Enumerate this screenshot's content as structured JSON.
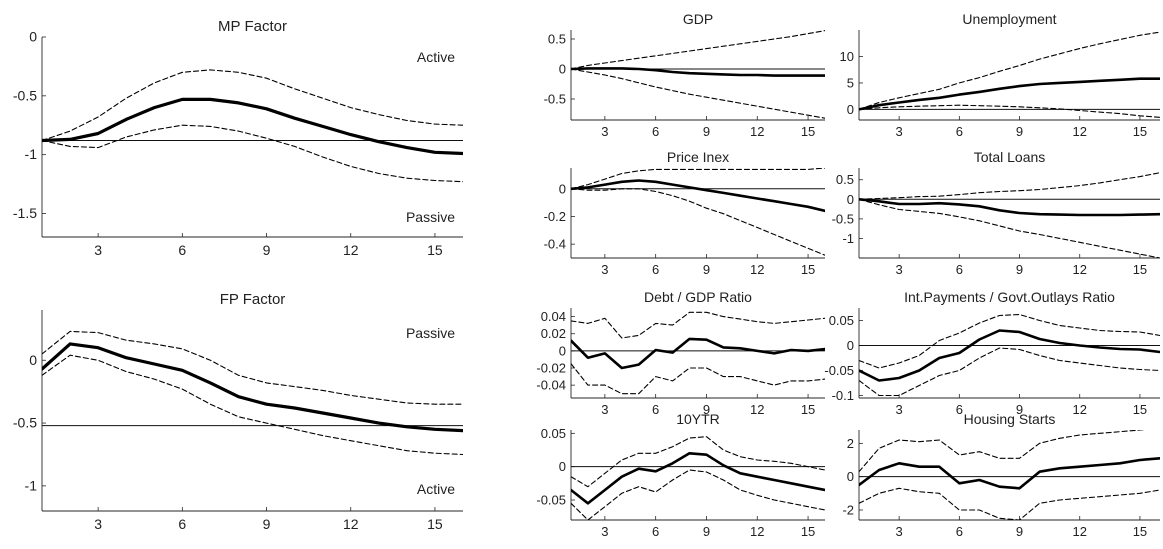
{
  "chart_data": [
    {
      "type": "line",
      "title": "MP Factor",
      "x": [
        1,
        2,
        3,
        4,
        5,
        6,
        7,
        8,
        9,
        10,
        11,
        12,
        13,
        14,
        15,
        16
      ],
      "xlim": [
        1,
        16
      ],
      "ylim": [
        -1.7,
        0
      ],
      "xticks": [
        3,
        6,
        9,
        12,
        15
      ],
      "yticks": [
        0,
        -0.5,
        -1,
        -1.5
      ],
      "xtick_labels": [
        "3",
        "6",
        "9",
        "12",
        "15"
      ],
      "ytick_labels": [
        "0",
        "-0.5",
        "-1",
        "-1.5"
      ],
      "hline": -0.88,
      "annotations": [
        "Active",
        "Passive"
      ],
      "series": [
        {
          "values": [
            -0.88,
            -0.87,
            -0.82,
            -0.7,
            -0.6,
            -0.53,
            -0.53,
            -0.56,
            -0.61,
            -0.69,
            -0.76,
            -0.83,
            -0.89,
            -0.94,
            -0.98,
            -0.99
          ]
        },
        {
          "values": [
            -0.88,
            -0.8,
            -0.68,
            -0.52,
            -0.39,
            -0.3,
            -0.28,
            -0.3,
            -0.35,
            -0.44,
            -0.52,
            -0.6,
            -0.66,
            -0.71,
            -0.74,
            -0.75
          ]
        },
        {
          "values": [
            -0.88,
            -0.93,
            -0.94,
            -0.85,
            -0.79,
            -0.75,
            -0.76,
            -0.8,
            -0.86,
            -0.93,
            -1.02,
            -1.1,
            -1.16,
            -1.2,
            -1.22,
            -1.23
          ]
        }
      ]
    },
    {
      "type": "line",
      "title": "FP Factor",
      "x": [
        1,
        2,
        3,
        4,
        5,
        6,
        7,
        8,
        9,
        10,
        11,
        12,
        13,
        14,
        15,
        16
      ],
      "xlim": [
        1,
        16
      ],
      "ylim": [
        -1.2,
        0.4
      ],
      "xticks": [
        3,
        6,
        9,
        12,
        15
      ],
      "yticks": [
        0,
        -0.5,
        -1
      ],
      "xtick_labels": [
        "3",
        "6",
        "9",
        "12",
        "15"
      ],
      "ytick_labels": [
        "0",
        "-0.5",
        "-1"
      ],
      "hline": -0.52,
      "annotations": [
        "Passive",
        "Active"
      ],
      "series": [
        {
          "values": [
            -0.07,
            0.13,
            0.1,
            0.02,
            -0.03,
            -0.08,
            -0.18,
            -0.29,
            -0.35,
            -0.38,
            -0.42,
            -0.46,
            -0.5,
            -0.53,
            -0.55,
            -0.56
          ]
        },
        {
          "values": [
            0.05,
            0.23,
            0.22,
            0.16,
            0.13,
            0.09,
            0.0,
            -0.12,
            -0.18,
            -0.21,
            -0.24,
            -0.28,
            -0.31,
            -0.34,
            -0.35,
            -0.35
          ]
        },
        {
          "values": [
            -0.12,
            0.04,
            0.0,
            -0.09,
            -0.15,
            -0.23,
            -0.35,
            -0.45,
            -0.5,
            -0.55,
            -0.6,
            -0.64,
            -0.68,
            -0.72,
            -0.74,
            -0.75
          ]
        }
      ]
    },
    {
      "type": "line",
      "title": "GDP",
      "x": [
        1,
        2,
        3,
        4,
        5,
        6,
        7,
        8,
        9,
        10,
        11,
        12,
        13,
        14,
        15,
        16
      ],
      "xlim": [
        1,
        16
      ],
      "ylim": [
        -0.85,
        0.65
      ],
      "xticks": [
        3,
        6,
        9,
        12,
        15
      ],
      "yticks": [
        0.5,
        0,
        -0.5
      ],
      "xtick_labels": [
        "3",
        "6",
        "9",
        "12",
        "15"
      ],
      "ytick_labels": [
        "0.5",
        "0",
        "-0.5"
      ],
      "hline": 0,
      "series": [
        {
          "values": [
            0,
            0.01,
            0.01,
            0.01,
            0,
            -0.02,
            -0.05,
            -0.07,
            -0.08,
            -0.09,
            -0.1,
            -0.1,
            -0.11,
            -0.11,
            -0.11,
            -0.11
          ]
        },
        {
          "values": [
            0,
            0.06,
            0.1,
            0.14,
            0.18,
            0.22,
            0.26,
            0.3,
            0.34,
            0.38,
            0.42,
            0.46,
            0.5,
            0.54,
            0.59,
            0.64
          ]
        },
        {
          "values": [
            0,
            -0.05,
            -0.1,
            -0.16,
            -0.23,
            -0.3,
            -0.36,
            -0.42,
            -0.47,
            -0.52,
            -0.57,
            -0.62,
            -0.67,
            -0.72,
            -0.77,
            -0.82
          ]
        }
      ]
    },
    {
      "type": "line",
      "title": "Unemployment",
      "x": [
        1,
        2,
        3,
        4,
        5,
        6,
        7,
        8,
        9,
        10,
        11,
        12,
        13,
        14,
        15,
        16
      ],
      "xlim": [
        1,
        16
      ],
      "ylim": [
        -2,
        15
      ],
      "xticks": [
        3,
        6,
        9,
        12,
        15
      ],
      "yticks": [
        10,
        5,
        0
      ],
      "xtick_labels": [
        "3",
        "6",
        "9",
        "12",
        "15"
      ],
      "ytick_labels": [
        "10",
        "5",
        "0"
      ],
      "hline": 0,
      "series": [
        {
          "values": [
            0,
            0.8,
            1.3,
            1.8,
            2.2,
            2.8,
            3.3,
            3.9,
            4.4,
            4.8,
            5,
            5.2,
            5.4,
            5.6,
            5.8,
            5.8
          ]
        },
        {
          "values": [
            0,
            1.3,
            2.2,
            3,
            3.8,
            5,
            6,
            7.2,
            8.3,
            9.5,
            10.5,
            11.5,
            12.4,
            13.2,
            14,
            14.6
          ]
        },
        {
          "values": [
            0,
            0.3,
            0.5,
            0.6,
            0.7,
            0.8,
            0.7,
            0.6,
            0.5,
            0.3,
            0.1,
            -0.2,
            -0.5,
            -0.8,
            -1.2,
            -1.5
          ]
        }
      ]
    },
    {
      "type": "line",
      "title": "Price Inex",
      "x": [
        1,
        2,
        3,
        4,
        5,
        6,
        7,
        8,
        9,
        10,
        11,
        12,
        13,
        14,
        15,
        16
      ],
      "xlim": [
        1,
        16
      ],
      "ylim": [
        -0.5,
        0.15
      ],
      "xticks": [
        3,
        6,
        9,
        12,
        15
      ],
      "yticks": [
        0,
        -0.2,
        -0.4
      ],
      "xtick_labels": [
        "3",
        "6",
        "9",
        "12",
        "15"
      ],
      "ytick_labels": [
        "0",
        "-0.2",
        "-0.4"
      ],
      "hline": 0,
      "series": [
        {
          "values": [
            0,
            0.01,
            0.03,
            0.05,
            0.06,
            0.05,
            0.03,
            0.01,
            -0.01,
            -0.03,
            -0.05,
            -0.07,
            -0.09,
            -0.11,
            -0.13,
            -0.16
          ]
        },
        {
          "values": [
            0,
            0.03,
            0.07,
            0.11,
            0.13,
            0.14,
            0.14,
            0.14,
            0.14,
            0.14,
            0.14,
            0.14,
            0.14,
            0.14,
            0.14,
            0.15
          ]
        },
        {
          "values": [
            0,
            -0.01,
            -0.01,
            0,
            0,
            -0.02,
            -0.05,
            -0.09,
            -0.14,
            -0.18,
            -0.23,
            -0.28,
            -0.33,
            -0.38,
            -0.43,
            -0.48
          ]
        }
      ]
    },
    {
      "type": "line",
      "title": "Total Loans",
      "x": [
        1,
        2,
        3,
        4,
        5,
        6,
        7,
        8,
        9,
        10,
        11,
        12,
        13,
        14,
        15,
        16
      ],
      "xlim": [
        1,
        16
      ],
      "ylim": [
        -1.5,
        0.8
      ],
      "xticks": [
        3,
        6,
        9,
        12,
        15
      ],
      "yticks": [
        0.5,
        0,
        -0.5,
        -1
      ],
      "xtick_labels": [
        "3",
        "6",
        "9",
        "12",
        "15"
      ],
      "ytick_labels": [
        "0.5",
        "0",
        "-0.5",
        "-1"
      ],
      "hline": 0,
      "series": [
        {
          "values": [
            0,
            -0.05,
            -0.12,
            -0.12,
            -0.1,
            -0.13,
            -0.18,
            -0.28,
            -0.35,
            -0.38,
            -0.39,
            -0.4,
            -0.4,
            -0.4,
            -0.39,
            -0.38
          ]
        },
        {
          "values": [
            0,
            0.02,
            0.04,
            0.07,
            0.08,
            0.12,
            0.17,
            0.2,
            0.22,
            0.25,
            0.3,
            0.35,
            0.42,
            0.5,
            0.58,
            0.68
          ]
        },
        {
          "values": [
            0,
            -0.14,
            -0.26,
            -0.31,
            -0.36,
            -0.45,
            -0.55,
            -0.68,
            -0.81,
            -0.9,
            -1,
            -1.1,
            -1.2,
            -1.3,
            -1.4,
            -1.5
          ]
        }
      ]
    },
    {
      "type": "line",
      "title": "Debt / GDP Ratio",
      "x": [
        1,
        2,
        3,
        4,
        5,
        6,
        7,
        8,
        9,
        10,
        11,
        12,
        13,
        14,
        15,
        16
      ],
      "xlim": [
        1,
        16
      ],
      "ylim": [
        -0.055,
        0.05
      ],
      "xticks": [
        3,
        6,
        9,
        12,
        15
      ],
      "yticks": [
        0.04,
        0.02,
        0,
        -0.02,
        -0.04
      ],
      "xtick_labels": [
        "3",
        "6",
        "9",
        "12",
        "15"
      ],
      "ytick_labels": [
        "0.04",
        "0.02",
        "0",
        "-0.02",
        "-0.04"
      ],
      "hline": 0,
      "series": [
        {
          "values": [
            0.012,
            -0.008,
            -0.003,
            -0.02,
            -0.016,
            0.001,
            -0.002,
            0.014,
            0.013,
            0.004,
            0.003,
            0,
            -0.003,
            0.001,
            0,
            0.002
          ]
        },
        {
          "values": [
            0.035,
            0.032,
            0.038,
            0.015,
            0.018,
            0.032,
            0.03,
            0.045,
            0.045,
            0.04,
            0.037,
            0.034,
            0.032,
            0.034,
            0.036,
            0.038
          ]
        },
        {
          "values": [
            -0.015,
            -0.04,
            -0.04,
            -0.05,
            -0.05,
            -0.03,
            -0.035,
            -0.02,
            -0.02,
            -0.03,
            -0.03,
            -0.035,
            -0.04,
            -0.035,
            -0.035,
            -0.033
          ]
        }
      ]
    },
    {
      "type": "line",
      "title": "Int.Payments / Govt.Outlays Ratio",
      "x": [
        1,
        2,
        3,
        4,
        5,
        6,
        7,
        8,
        9,
        10,
        11,
        12,
        13,
        14,
        15,
        16
      ],
      "xlim": [
        1,
        16
      ],
      "ylim": [
        -0.105,
        0.075
      ],
      "xticks": [
        3,
        6,
        9,
        12,
        15
      ],
      "yticks": [
        0.05,
        0,
        -0.05,
        -0.1
      ],
      "xtick_labels": [
        "3",
        "6",
        "9",
        "12",
        "15"
      ],
      "ytick_labels": [
        "0.05",
        "0",
        "-0.05",
        "-0.1"
      ],
      "hline": 0,
      "series": [
        {
          "values": [
            -0.05,
            -0.07,
            -0.065,
            -0.05,
            -0.025,
            -0.015,
            0.012,
            0.03,
            0.027,
            0.013,
            0.005,
            0,
            -0.004,
            -0.007,
            -0.008,
            -0.013
          ]
        },
        {
          "values": [
            -0.03,
            -0.045,
            -0.035,
            -0.02,
            0.01,
            0.025,
            0.045,
            0.06,
            0.062,
            0.05,
            0.04,
            0.035,
            0.03,
            0.028,
            0.027,
            0.02
          ]
        },
        {
          "values": [
            -0.07,
            -0.1,
            -0.1,
            -0.08,
            -0.06,
            -0.05,
            -0.025,
            -0.005,
            -0.008,
            -0.02,
            -0.03,
            -0.035,
            -0.04,
            -0.045,
            -0.048,
            -0.05
          ]
        }
      ]
    },
    {
      "type": "line",
      "title": "10YTR",
      "x": [
        1,
        2,
        3,
        4,
        5,
        6,
        7,
        8,
        9,
        10,
        11,
        12,
        13,
        14,
        15,
        16
      ],
      "xlim": [
        1,
        16
      ],
      "ylim": [
        -0.08,
        0.055
      ],
      "xticks": [
        3,
        6,
        9,
        12,
        15
      ],
      "yticks": [
        0.05,
        0,
        -0.05
      ],
      "xtick_labels": [
        "3",
        "6",
        "9",
        "12",
        "15"
      ],
      "ytick_labels": [
        "0.05",
        "0",
        "-0.05"
      ],
      "hline": 0,
      "series": [
        {
          "values": [
            -0.035,
            -0.055,
            -0.035,
            -0.015,
            -0.003,
            -0.007,
            0.005,
            0.02,
            0.018,
            0.002,
            -0.01,
            -0.015,
            -0.02,
            -0.025,
            -0.03,
            -0.035
          ]
        },
        {
          "values": [
            -0.015,
            -0.03,
            -0.01,
            0.01,
            0.02,
            0.02,
            0.03,
            0.043,
            0.045,
            0.025,
            0.015,
            0.01,
            0.008,
            0.005,
            0,
            -0.005
          ]
        },
        {
          "values": [
            -0.055,
            -0.08,
            -0.06,
            -0.04,
            -0.03,
            -0.038,
            -0.02,
            -0.005,
            -0.008,
            -0.02,
            -0.035,
            -0.043,
            -0.05,
            -0.055,
            -0.06,
            -0.065
          ]
        }
      ]
    },
    {
      "type": "line",
      "title": "Housing Starts",
      "x": [
        1,
        2,
        3,
        4,
        5,
        6,
        7,
        8,
        9,
        10,
        11,
        12,
        13,
        14,
        15,
        16
      ],
      "xlim": [
        1,
        16
      ],
      "ylim": [
        -2.6,
        2.8
      ],
      "xticks": [
        3,
        6,
        9,
        12,
        15
      ],
      "yticks": [
        2,
        0,
        -2
      ],
      "xtick_labels": [
        "3",
        "6",
        "9",
        "12",
        "15"
      ],
      "ytick_labels": [
        "2",
        "0",
        "-2"
      ],
      "hline": 0,
      "series": [
        {
          "values": [
            -0.5,
            0.4,
            0.8,
            0.6,
            0.6,
            -0.4,
            -0.2,
            -0.6,
            -0.7,
            0.3,
            0.5,
            0.6,
            0.7,
            0.8,
            1,
            1.1
          ]
        },
        {
          "values": [
            0.3,
            1.7,
            2.2,
            2.1,
            2.2,
            1.3,
            1.5,
            1.1,
            1.1,
            2,
            2.3,
            2.5,
            2.6,
            2.7,
            2.8,
            2.9
          ]
        },
        {
          "values": [
            -1.6,
            -1,
            -0.7,
            -0.9,
            -1,
            -2,
            -2,
            -2.5,
            -2.6,
            -1.6,
            -1.4,
            -1.3,
            -1.2,
            -1.1,
            -1,
            -0.8
          ]
        }
      ]
    }
  ]
}
